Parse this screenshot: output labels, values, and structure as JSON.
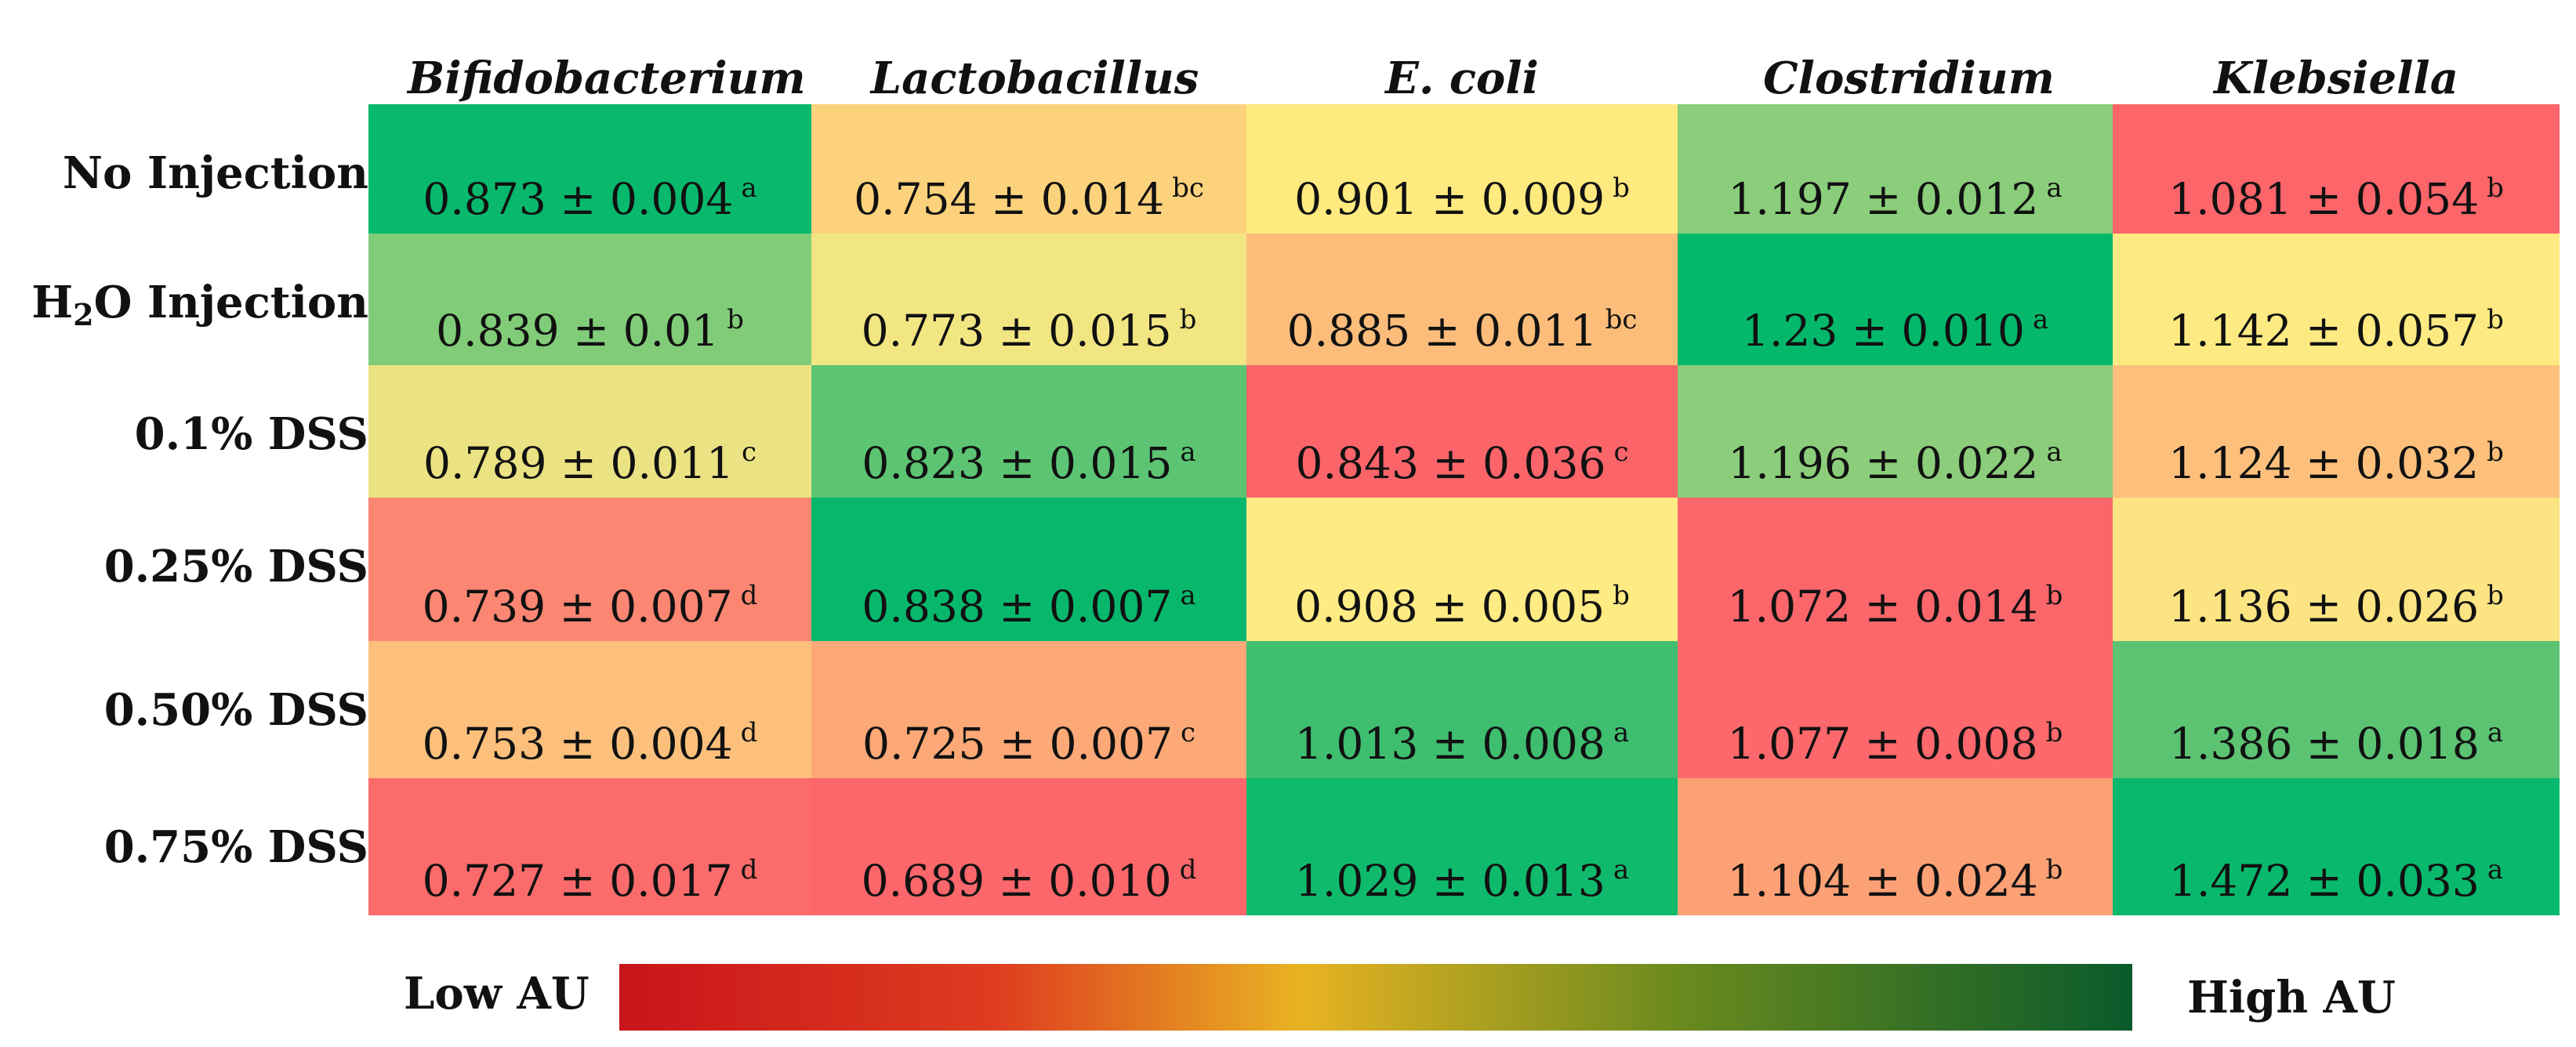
{
  "chart_data": {
    "type": "heatmap",
    "columns": [
      "Bifidobacterium",
      "Lactobacillus",
      "E. coli",
      "Clostridium",
      "Klebsiella"
    ],
    "rows": [
      {
        "label": "No Injection",
        "label_parts": {
          "pre": "No Injection",
          "sub": "",
          "post": ""
        },
        "cells": [
          {
            "mean": 0.873,
            "text": "0.873 ± 0.004",
            "letter": "a",
            "color": "#08b86c"
          },
          {
            "mean": 0.754,
            "text": "0.754 ± 0.014",
            "letter": "bc",
            "color": "#fdd27c"
          },
          {
            "mean": 0.901,
            "text": "0.901 ± 0.009",
            "letter": "b",
            "color": "#feea7e"
          },
          {
            "mean": 1.197,
            "text": "1.197 ± 0.012",
            "letter": "a",
            "color": "#8acd7a"
          },
          {
            "mean": 1.081,
            "text": "1.081 ± 0.054",
            "letter": "b",
            "color": "#fc656a"
          }
        ]
      },
      {
        "label": "H2O Injection",
        "label_parts": {
          "pre": "H",
          "sub": "2",
          "post": "O Injection"
        },
        "cells": [
          {
            "mean": 0.839,
            "text": "0.839 ± 0.01",
            "letter": "b",
            "color": "#81cc79"
          },
          {
            "mean": 0.773,
            "text": "0.773 ± 0.015",
            "letter": "b",
            "color": "#f2e683"
          },
          {
            "mean": 0.885,
            "text": "0.885 ± 0.011",
            "letter": "bc",
            "color": "#fcbd7b"
          },
          {
            "mean": 1.23,
            "text": "1.23 ± 0.010",
            "letter": "a",
            "color": "#04b86b"
          },
          {
            "mean": 1.142,
            "text": "1.142 ± 0.057",
            "letter": "b",
            "color": "#feea82"
          }
        ]
      },
      {
        "label": "0.1% DSS",
        "label_parts": {
          "pre": "0.1% DSS",
          "sub": "",
          "post": ""
        },
        "cells": [
          {
            "mean": 0.789,
            "text": "0.789 ± 0.011",
            "letter": "c",
            "color": "#ebe284"
          },
          {
            "mean": 0.823,
            "text": "0.823 ± 0.015",
            "letter": "a",
            "color": "#5cc473"
          },
          {
            "mean": 0.843,
            "text": "0.843 ± 0.036",
            "letter": "c",
            "color": "#fb656a"
          },
          {
            "mean": 1.196,
            "text": "1.196 ± 0.022",
            "letter": "a",
            "color": "#8bcd7b"
          },
          {
            "mean": 1.124,
            "text": "1.124 ± 0.032",
            "letter": "b",
            "color": "#fcc07c"
          }
        ]
      },
      {
        "label": "0.25% DSS",
        "label_parts": {
          "pre": "0.25% DSS",
          "sub": "",
          "post": ""
        },
        "cells": [
          {
            "mean": 0.739,
            "text": "0.739 ± 0.007",
            "letter": "d",
            "color": "#fb8672"
          },
          {
            "mean": 0.838,
            "text": "0.838 ± 0.007",
            "letter": "a",
            "color": "#07b86c"
          },
          {
            "mean": 0.908,
            "text": "0.908 ± 0.005",
            "letter": "b",
            "color": "#feeb83"
          },
          {
            "mean": 1.072,
            "text": "1.072 ± 0.014",
            "letter": "b",
            "color": "#fb666b"
          },
          {
            "mean": 1.136,
            "text": "1.136 ± 0.026",
            "letter": "b",
            "color": "#fde482"
          }
        ]
      },
      {
        "label": "0.50% DSS",
        "label_parts": {
          "pre": "0.50% DSS",
          "sub": "",
          "post": ""
        },
        "cells": [
          {
            "mean": 0.753,
            "text": "0.753 ± 0.004",
            "letter": "d",
            "color": "#fcc07c"
          },
          {
            "mean": 0.725,
            "text": "0.725 ± 0.007",
            "letter": "c",
            "color": "#fca977"
          },
          {
            "mean": 1.013,
            "text": "1.013 ± 0.008",
            "letter": "a",
            "color": "#3fbe70"
          },
          {
            "mean": 1.077,
            "text": "1.077 ± 0.008",
            "letter": "b",
            "color": "#fc686b"
          },
          {
            "mean": 1.386,
            "text": "1.386 ± 0.018",
            "letter": "a",
            "color": "#5cc373"
          }
        ]
      },
      {
        "label": "0.75% DSS",
        "label_parts": {
          "pre": "0.75% DSS",
          "sub": "",
          "post": ""
        },
        "cells": [
          {
            "mean": 0.727,
            "text": "0.727 ± 0.017",
            "letter": "d",
            "color": "#fc6b6b"
          },
          {
            "mean": 0.689,
            "text": "0.689 ± 0.010",
            "letter": "d",
            "color": "#fc676b"
          },
          {
            "mean": 1.029,
            "text": "1.029 ± 0.013",
            "letter": "a",
            "color": "#10ba6d"
          },
          {
            "mean": 1.104,
            "text": "1.104 ± 0.024",
            "letter": "b",
            "color": "#fca076"
          },
          {
            "mean": 1.472,
            "text": "1.472 ± 0.033",
            "letter": "a",
            "color": "#08b86c"
          }
        ]
      }
    ],
    "legend": {
      "low_label": "Low AU",
      "high_label": "High AU",
      "gradient": [
        "#c9141a",
        "#de3d20",
        "#e8b322",
        "#6a8a1e",
        "#0a5a2b"
      ]
    }
  }
}
